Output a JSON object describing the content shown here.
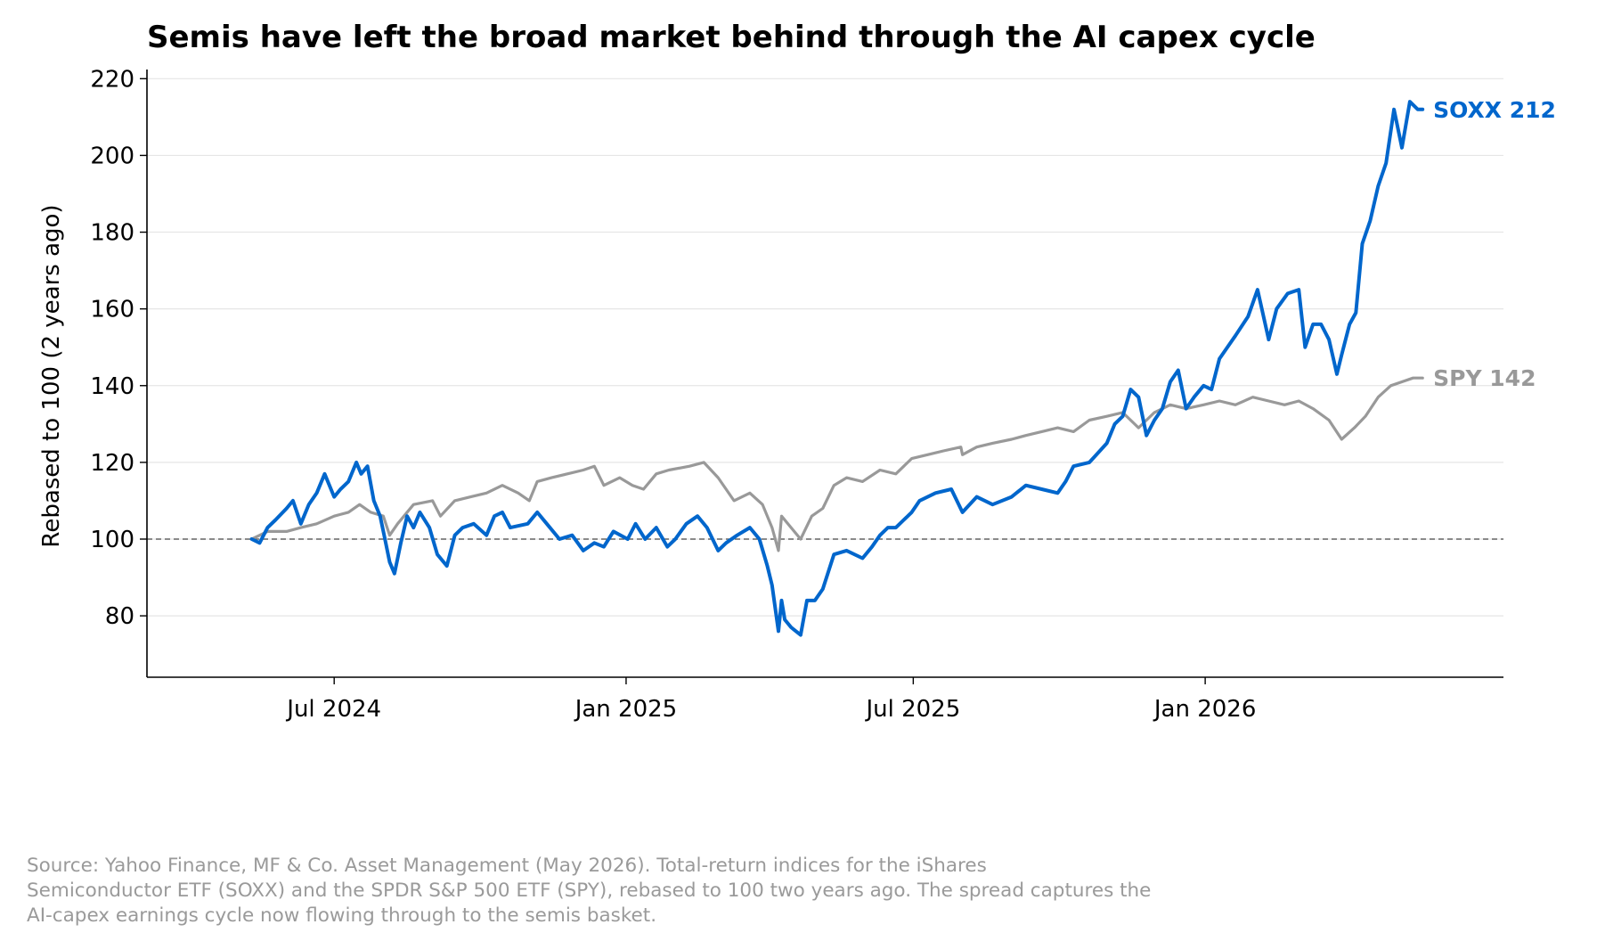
{
  "chart_data": {
    "type": "line",
    "title": "Semis have left the broad market behind through the AI capex cycle",
    "ylabel": "Rebased to 100 (2 years ago)",
    "xlabel": "",
    "ylim": [
      64,
      221
    ],
    "xlim": [
      "2024-03-05",
      "2026-07-08"
    ],
    "y_ticks": [
      80,
      100,
      120,
      140,
      160,
      180,
      200,
      220
    ],
    "x_ticks": [
      {
        "date": "2024-07-01",
        "label": "Jul 2024"
      },
      {
        "date": "2025-01-01",
        "label": "Jan 2025"
      },
      {
        "date": "2025-07-01",
        "label": "Jul 2025"
      },
      {
        "date": "2026-01-01",
        "label": "Jan 2026"
      }
    ],
    "reference_line": {
      "y": 100,
      "style": "dashed",
      "color": "#666666"
    },
    "grid": "horizontal",
    "series": [
      {
        "name": "SPY",
        "end_label": "SPY 142",
        "color": "#999999",
        "points": [
          [
            "2024-05-10",
            100
          ],
          [
            "2024-05-20",
            102
          ],
          [
            "2024-06-01",
            102
          ],
          [
            "2024-06-10",
            103
          ],
          [
            "2024-06-20",
            104
          ],
          [
            "2024-07-01",
            106
          ],
          [
            "2024-07-10",
            107
          ],
          [
            "2024-07-17",
            109
          ],
          [
            "2024-07-24",
            107
          ],
          [
            "2024-08-01",
            106
          ],
          [
            "2024-08-05",
            101
          ],
          [
            "2024-08-10",
            104
          ],
          [
            "2024-08-20",
            109
          ],
          [
            "2024-09-01",
            110
          ],
          [
            "2024-09-06",
            106
          ],
          [
            "2024-09-15",
            110
          ],
          [
            "2024-09-25",
            111
          ],
          [
            "2024-10-05",
            112
          ],
          [
            "2024-10-15",
            114
          ],
          [
            "2024-10-25",
            112
          ],
          [
            "2024-11-01",
            110
          ],
          [
            "2024-11-06",
            115
          ],
          [
            "2024-11-15",
            116
          ],
          [
            "2024-11-25",
            117
          ],
          [
            "2024-12-05",
            118
          ],
          [
            "2024-12-12",
            119
          ],
          [
            "2024-12-18",
            114
          ],
          [
            "2024-12-28",
            116
          ],
          [
            "2025-01-05",
            114
          ],
          [
            "2025-01-12",
            113
          ],
          [
            "2025-01-20",
            117
          ],
          [
            "2025-01-28",
            118
          ],
          [
            "2025-02-10",
            119
          ],
          [
            "2025-02-19",
            120
          ],
          [
            "2025-02-28",
            116
          ],
          [
            "2025-03-10",
            110
          ],
          [
            "2025-03-20",
            112
          ],
          [
            "2025-03-28",
            109
          ],
          [
            "2025-04-03",
            103
          ],
          [
            "2025-04-07",
            97
          ],
          [
            "2025-04-09",
            106
          ],
          [
            "2025-04-15",
            103
          ],
          [
            "2025-04-21",
            100
          ],
          [
            "2025-04-28",
            106
          ],
          [
            "2025-05-05",
            108
          ],
          [
            "2025-05-12",
            114
          ],
          [
            "2025-05-20",
            116
          ],
          [
            "2025-05-30",
            115
          ],
          [
            "2025-06-10",
            118
          ],
          [
            "2025-06-20",
            117
          ],
          [
            "2025-06-30",
            121
          ],
          [
            "2025-07-10",
            122
          ],
          [
            "2025-07-20",
            123
          ],
          [
            "2025-07-31",
            124
          ],
          [
            "2025-08-01",
            122
          ],
          [
            "2025-08-10",
            124
          ],
          [
            "2025-08-20",
            125
          ],
          [
            "2025-09-01",
            126
          ],
          [
            "2025-09-10",
            127
          ],
          [
            "2025-09-20",
            128
          ],
          [
            "2025-09-30",
            129
          ],
          [
            "2025-10-10",
            128
          ],
          [
            "2025-10-20",
            131
          ],
          [
            "2025-10-31",
            132
          ],
          [
            "2025-11-10",
            133
          ],
          [
            "2025-11-20",
            129
          ],
          [
            "2025-11-30",
            133
          ],
          [
            "2025-12-10",
            135
          ],
          [
            "2025-12-20",
            134
          ],
          [
            "2025-12-31",
            135
          ],
          [
            "2026-01-10",
            136
          ],
          [
            "2026-01-20",
            135
          ],
          [
            "2026-01-31",
            137
          ],
          [
            "2026-02-10",
            136
          ],
          [
            "2026-02-20",
            135
          ],
          [
            "2026-03-01",
            136
          ],
          [
            "2026-03-10",
            134
          ],
          [
            "2026-03-20",
            131
          ],
          [
            "2026-03-28",
            126
          ],
          [
            "2026-04-05",
            129
          ],
          [
            "2026-04-12",
            132
          ],
          [
            "2026-04-20",
            137
          ],
          [
            "2026-04-28",
            140
          ],
          [
            "2026-05-05",
            141
          ],
          [
            "2026-05-12",
            142
          ],
          [
            "2026-05-18",
            142
          ]
        ]
      },
      {
        "name": "SOXX",
        "end_label": "SOXX 212",
        "color": "#0066cc",
        "points": [
          [
            "2024-05-10",
            100
          ],
          [
            "2024-05-15",
            99
          ],
          [
            "2024-05-20",
            103
          ],
          [
            "2024-05-25",
            105
          ],
          [
            "2024-06-01",
            108
          ],
          [
            "2024-06-05",
            110
          ],
          [
            "2024-06-10",
            104
          ],
          [
            "2024-06-15",
            109
          ],
          [
            "2024-06-20",
            112
          ],
          [
            "2024-06-25",
            117
          ],
          [
            "2024-07-01",
            111
          ],
          [
            "2024-07-05",
            113
          ],
          [
            "2024-07-10",
            115
          ],
          [
            "2024-07-15",
            120
          ],
          [
            "2024-07-18",
            117
          ],
          [
            "2024-07-22",
            119
          ],
          [
            "2024-07-26",
            110
          ],
          [
            "2024-07-30",
            106
          ],
          [
            "2024-08-02",
            100
          ],
          [
            "2024-08-05",
            94
          ],
          [
            "2024-08-08",
            91
          ],
          [
            "2024-08-12",
            99
          ],
          [
            "2024-08-16",
            106
          ],
          [
            "2024-08-20",
            103
          ],
          [
            "2024-08-24",
            107
          ],
          [
            "2024-08-30",
            103
          ],
          [
            "2024-09-04",
            96
          ],
          [
            "2024-09-10",
            93
          ],
          [
            "2024-09-15",
            101
          ],
          [
            "2024-09-20",
            103
          ],
          [
            "2024-09-27",
            104
          ],
          [
            "2024-10-05",
            101
          ],
          [
            "2024-10-10",
            106
          ],
          [
            "2024-10-15",
            107
          ],
          [
            "2024-10-20",
            103
          ],
          [
            "2024-10-31",
            104
          ],
          [
            "2024-11-06",
            107
          ],
          [
            "2024-11-12",
            104
          ],
          [
            "2024-11-20",
            100
          ],
          [
            "2024-11-28",
            101
          ],
          [
            "2024-12-05",
            97
          ],
          [
            "2024-12-12",
            99
          ],
          [
            "2024-12-18",
            98
          ],
          [
            "2024-12-24",
            102
          ],
          [
            "2025-01-02",
            100
          ],
          [
            "2025-01-07",
            104
          ],
          [
            "2025-01-13",
            100
          ],
          [
            "2025-01-20",
            103
          ],
          [
            "2025-01-27",
            98
          ],
          [
            "2025-02-01",
            100
          ],
          [
            "2025-02-08",
            104
          ],
          [
            "2025-02-15",
            106
          ],
          [
            "2025-02-21",
            103
          ],
          [
            "2025-02-28",
            97
          ],
          [
            "2025-03-05",
            99
          ],
          [
            "2025-03-12",
            101
          ],
          [
            "2025-03-20",
            103
          ],
          [
            "2025-03-26",
            100
          ],
          [
            "2025-03-31",
            93
          ],
          [
            "2025-04-03",
            88
          ],
          [
            "2025-04-07",
            76
          ],
          [
            "2025-04-09",
            84
          ],
          [
            "2025-04-11",
            79
          ],
          [
            "2025-04-15",
            77
          ],
          [
            "2025-04-21",
            75
          ],
          [
            "2025-04-25",
            84
          ],
          [
            "2025-04-30",
            84
          ],
          [
            "2025-05-05",
            87
          ],
          [
            "2025-05-12",
            96
          ],
          [
            "2025-05-20",
            97
          ],
          [
            "2025-05-30",
            95
          ],
          [
            "2025-06-05",
            98
          ],
          [
            "2025-06-10",
            101
          ],
          [
            "2025-06-15",
            103
          ],
          [
            "2025-06-20",
            103
          ],
          [
            "2025-06-30",
            107
          ],
          [
            "2025-07-05",
            110
          ],
          [
            "2025-07-15",
            112
          ],
          [
            "2025-07-25",
            113
          ],
          [
            "2025-08-01",
            107
          ],
          [
            "2025-08-10",
            111
          ],
          [
            "2025-08-20",
            109
          ],
          [
            "2025-09-01",
            111
          ],
          [
            "2025-09-10",
            114
          ],
          [
            "2025-09-20",
            113
          ],
          [
            "2025-09-30",
            112
          ],
          [
            "2025-10-05",
            115
          ],
          [
            "2025-10-10",
            119
          ],
          [
            "2025-10-20",
            120
          ],
          [
            "2025-10-31",
            125
          ],
          [
            "2025-11-05",
            130
          ],
          [
            "2025-11-10",
            132
          ],
          [
            "2025-11-15",
            139
          ],
          [
            "2025-11-20",
            137
          ],
          [
            "2025-11-25",
            127
          ],
          [
            "2025-11-30",
            131
          ],
          [
            "2025-12-05",
            134
          ],
          [
            "2025-12-10",
            141
          ],
          [
            "2025-12-15",
            144
          ],
          [
            "2025-12-20",
            134
          ],
          [
            "2025-12-25",
            137
          ],
          [
            "2025-12-31",
            140
          ],
          [
            "2026-01-05",
            139
          ],
          [
            "2026-01-10",
            147
          ],
          [
            "2026-01-20",
            153
          ],
          [
            "2026-01-28",
            158
          ],
          [
            "2026-02-03",
            165
          ],
          [
            "2026-02-10",
            152
          ],
          [
            "2026-02-15",
            160
          ],
          [
            "2026-02-22",
            164
          ],
          [
            "2026-03-01",
            165
          ],
          [
            "2026-03-05",
            150
          ],
          [
            "2026-03-10",
            156
          ],
          [
            "2026-03-15",
            156
          ],
          [
            "2026-03-20",
            152
          ],
          [
            "2026-03-25",
            143
          ],
          [
            "2026-03-28",
            148
          ],
          [
            "2026-04-02",
            156
          ],
          [
            "2026-04-06",
            159
          ],
          [
            "2026-04-10",
            177
          ],
          [
            "2026-04-15",
            183
          ],
          [
            "2026-04-20",
            192
          ],
          [
            "2026-04-25",
            198
          ],
          [
            "2026-04-30",
            212
          ],
          [
            "2026-05-05",
            202
          ],
          [
            "2026-05-10",
            214
          ],
          [
            "2026-05-15",
            212
          ],
          [
            "2026-05-18",
            212
          ]
        ]
      }
    ]
  },
  "footnote": [
    "Source: Yahoo Finance, MF & Co. Asset Management (May 2026). Total-return indices for the iShares",
    "Semiconductor ETF (SOXX) and the SPDR S&P 500 ETF (SPY), rebased to 100 two years ago. The spread captures the",
    "AI-capex earnings cycle now flowing through to the semis basket."
  ]
}
